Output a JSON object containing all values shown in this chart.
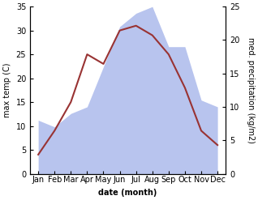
{
  "months": [
    "Jan",
    "Feb",
    "Mar",
    "Apr",
    "May",
    "Jun",
    "Jul",
    "Aug",
    "Sep",
    "Oct",
    "Nov",
    "Dec"
  ],
  "temperature": [
    4,
    9,
    15,
    25,
    23,
    30,
    31,
    29,
    25,
    18,
    9,
    6
  ],
  "precipitation": [
    8,
    7,
    9,
    10,
    16,
    22,
    24,
    25,
    19,
    19,
    11,
    10
  ],
  "temp_color": "#993333",
  "precip_color": "#b8c4ee",
  "temp_ylim": [
    0,
    35
  ],
  "precip_ylim": [
    0,
    25
  ],
  "temp_yticks": [
    0,
    5,
    10,
    15,
    20,
    25,
    30,
    35
  ],
  "precip_yticks": [
    0,
    5,
    10,
    15,
    20,
    25
  ],
  "xlabel": "date (month)",
  "ylabel_left": "max temp (C)",
  "ylabel_right": "med. precipitation (kg/m2)",
  "line_width": 1.5,
  "bg_color": "#ffffff",
  "tick_label_fontsize": 7,
  "axis_label_fontsize": 7
}
